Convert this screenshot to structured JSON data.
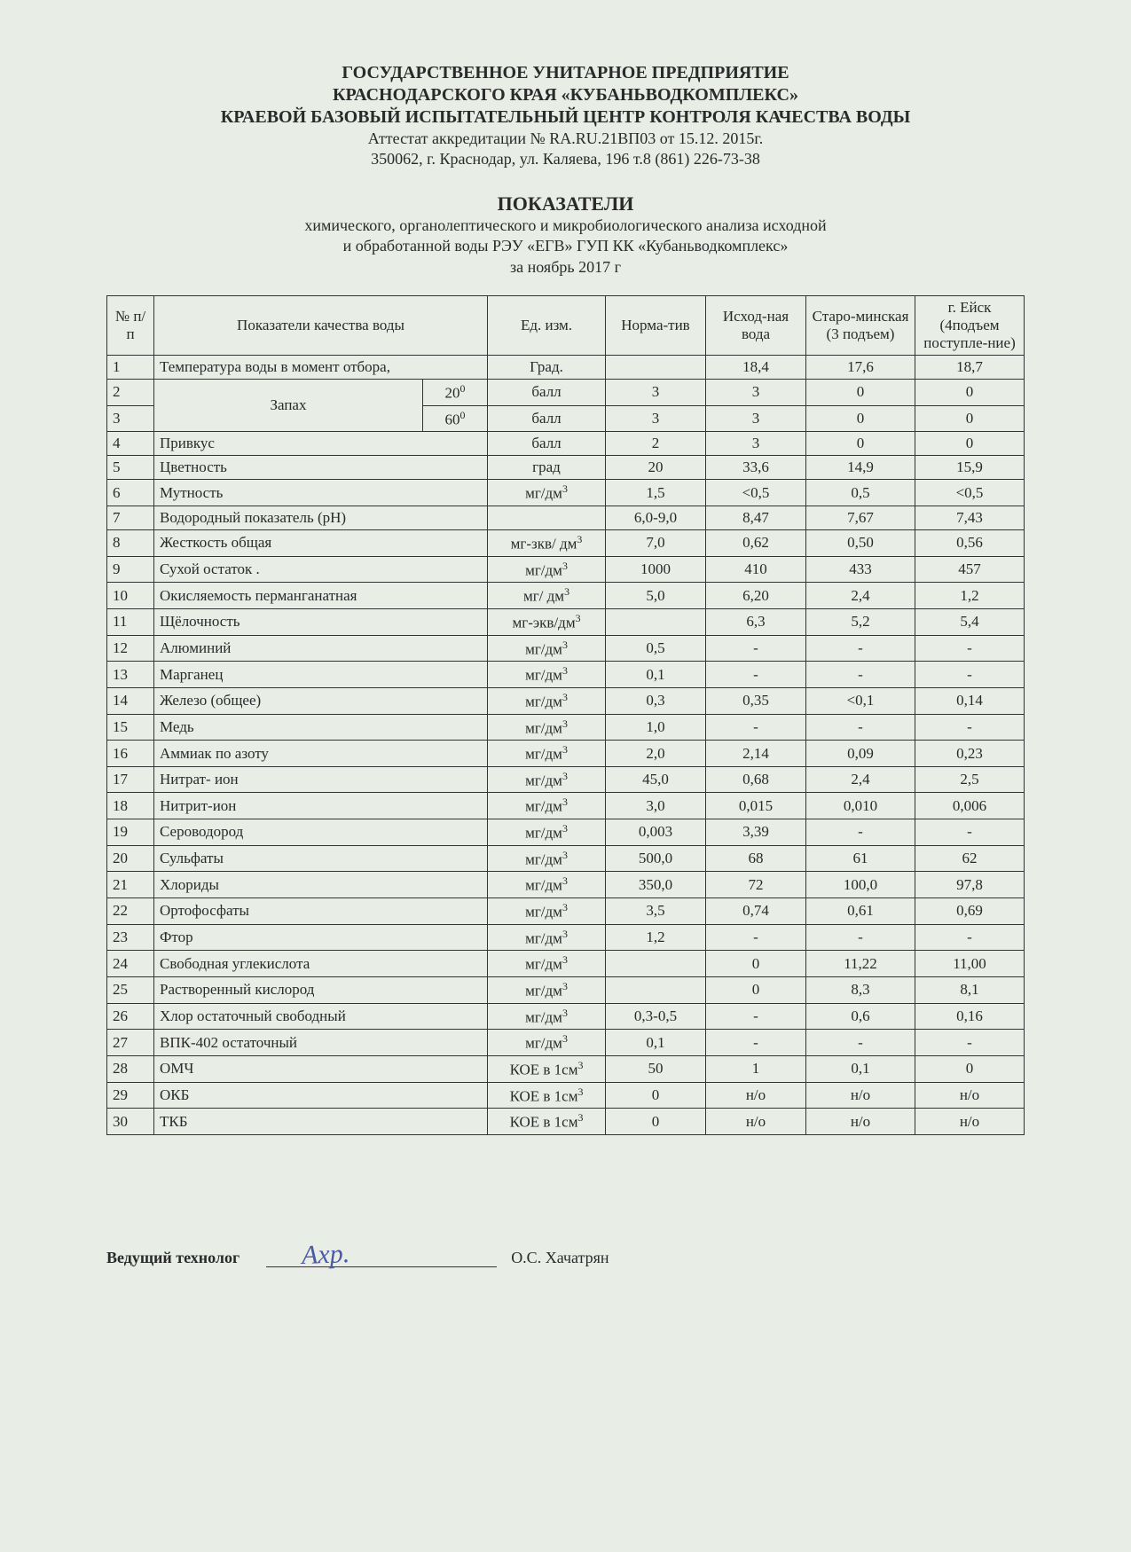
{
  "header": {
    "org1": "ГОСУДАРСТВЕННОЕ УНИТАРНОЕ ПРЕДПРИЯТИЕ",
    "org2": "КРАСНОДАРСКОГО КРАЯ «КУБАНЬВОДКОМПЛЕКС»",
    "org3": "КРАЕВОЙ БАЗОВЫЙ ИСПЫТАТЕЛЬНЫЙ ЦЕНТР КОНТРОЛЯ КАЧЕСТВА ВОДЫ",
    "attest": "Аттестат аккредитации   №  RA.RU.21ВП03 от 15.12. 2015г.",
    "addr": "350062, г. Краснодар, ул. Каляева, 196    т.8 (861) 226-73-38"
  },
  "title": {
    "t1": "ПОКАЗАТЕЛИ",
    "t2": "химического, органолептического и микробиологического анализа исходной",
    "t3": "и обработанной воды  РЭУ «ЕГВ» ГУП КК «Кубаньводкомплекс»",
    "t4": "за ноябрь 2017 г"
  },
  "table": {
    "headers": {
      "num": "№ п/п",
      "param": "Показатели качества воды",
      "unit": "Ед. изм.",
      "norm": "Норма-тив",
      "c1": "Исход-ная вода",
      "c2": "Старо-минская (3 подъем)",
      "c3": "г. Ейск (4подъем поступле-ние)"
    },
    "zapah_label": "Запах",
    "zapah_t1": "20",
    "zapah_t2": "60",
    "rows": [
      {
        "n": "1",
        "p": "Температура воды в момент отбора,",
        "u": "Град.",
        "norm": "",
        "v1": "18,4",
        "v2": "17,6",
        "v3": "18,7"
      },
      {
        "n": "2",
        "p": "",
        "u": "балл",
        "norm": "3",
        "v1": "3",
        "v2": "0",
        "v3": "0"
      },
      {
        "n": "3",
        "p": "",
        "u": "балл",
        "norm": "3",
        "v1": "3",
        "v2": "0",
        "v3": "0"
      },
      {
        "n": "4",
        "p": "Привкус",
        "u": "балл",
        "norm": "2",
        "v1": "3",
        "v2": "0",
        "v3": "0"
      },
      {
        "n": "5",
        "p": "Цветность",
        "u": "град",
        "norm": "20",
        "v1": "33,6",
        "v2": "14,9",
        "v3": "15,9"
      },
      {
        "n": "6",
        "p": "Мутность",
        "u": "мг/дм",
        "norm": "1,5",
        "v1": "<0,5",
        "v2": "0,5",
        "v3": "<0,5"
      },
      {
        "n": "7",
        "p": "Водородный показатель (pH)",
        "u": "",
        "norm": "6,0-9,0",
        "v1": "8,47",
        "v2": "7,67",
        "v3": "7,43"
      },
      {
        "n": "8",
        "p": "Жесткость общая",
        "u": "мг-зкв/ дм",
        "norm": "7,0",
        "v1": "0,62",
        "v2": "0,50",
        "v3": "0,56"
      },
      {
        "n": "9",
        "p": "Сухой остаток .",
        "u": "мг/дм",
        "norm": "1000",
        "v1": "410",
        "v2": "433",
        "v3": "457"
      },
      {
        "n": "10",
        "p": "Окисляемость перманганатная",
        "u": "мг/ дм",
        "norm": "5,0",
        "v1": "6,20",
        "v2": "2,4",
        "v3": "1,2"
      },
      {
        "n": "11",
        "p": "Щёлочность",
        "u": "мг-экв/дм",
        "norm": "",
        "v1": "6,3",
        "v2": "5,2",
        "v3": "5,4"
      },
      {
        "n": "12",
        "p": "Алюминий",
        "u": "мг/дм",
        "norm": "0,5",
        "v1": "-",
        "v2": "-",
        "v3": "-"
      },
      {
        "n": "13",
        "p": "Марганец",
        "u": "мг/дм",
        "norm": "0,1",
        "v1": "-",
        "v2": "-",
        "v3": "-"
      },
      {
        "n": "14",
        "p": "Железо (общее)",
        "u": "мг/дм",
        "norm": "0,3",
        "v1": "0,35",
        "v2": "<0,1",
        "v3": "0,14"
      },
      {
        "n": "15",
        "p": "Медь",
        "u": "мг/дм",
        "norm": "1,0",
        "v1": "-",
        "v2": "-",
        "v3": "-"
      },
      {
        "n": "16",
        "p": "Аммиак по азоту",
        "u": "мг/дм",
        "norm": "2,0",
        "v1": "2,14",
        "v2": "0,09",
        "v3": "0,23"
      },
      {
        "n": "17",
        "p": "Нитрат- ион",
        "u": "мг/дм",
        "norm": "45,0",
        "v1": "0,68",
        "v2": "2,4",
        "v3": "2,5"
      },
      {
        "n": "18",
        "p": "Нитрит-ион",
        "u": "мг/дм",
        "norm": "3,0",
        "v1": "0,015",
        "v2": "0,010",
        "v3": "0,006"
      },
      {
        "n": "19",
        "p": "Сероводород",
        "u": "мг/дм",
        "norm": "0,003",
        "v1": "3,39",
        "v2": "-",
        "v3": "-"
      },
      {
        "n": "20",
        "p": "Сульфаты",
        "u": "мг/дм",
        "norm": "500,0",
        "v1": "68",
        "v2": "61",
        "v3": "62"
      },
      {
        "n": "21",
        "p": "Хлориды",
        "u": "мг/дм",
        "norm": "350,0",
        "v1": "72",
        "v2": "100,0",
        "v3": "97,8"
      },
      {
        "n": "22",
        "p": "Ортофосфаты",
        "u": "мг/дм",
        "norm": "3,5",
        "v1": "0,74",
        "v2": "0,61",
        "v3": "0,69"
      },
      {
        "n": "23",
        "p": "Фтор",
        "u": "мг/дм",
        "norm": "1,2",
        "v1": "-",
        "v2": "-",
        "v3": "-"
      },
      {
        "n": "24",
        "p": "Свободная углекислота",
        "u": "мг/дм",
        "norm": "",
        "v1": "0",
        "v2": "11,22",
        "v3": "11,00"
      },
      {
        "n": "25",
        "p": "Растворенный кислород",
        "u": "мг/дм",
        "norm": "",
        "v1": "0",
        "v2": "8,3",
        "v3": "8,1"
      },
      {
        "n": "26",
        "p": "Хлор остаточный свободный",
        "u": "мг/дм",
        "norm": "0,3-0,5",
        "v1": "-",
        "v2": "0,6",
        "v3": "0,16"
      },
      {
        "n": "27",
        "p": "ВПК-402 остаточный",
        "u": "мг/дм",
        "norm": "0,1",
        "v1": "-",
        "v2": "-",
        "v3": "-"
      },
      {
        "n": "28",
        "p": "ОМЧ",
        "u": "КОЕ в 1см",
        "norm": "50",
        "v1": "1",
        "v2": "0,1",
        "v3": "0"
      },
      {
        "n": "29",
        "p": "ОКБ",
        "u": "КОЕ в 1см",
        "norm": "0",
        "v1": "н/о",
        "v2": "н/о",
        "v3": "н/о"
      },
      {
        "n": "30",
        "p": "ТКБ",
        "u": "КОЕ в 1см",
        "norm": "0",
        "v1": "н/о",
        "v2": "н/о",
        "v3": "н/о"
      }
    ]
  },
  "sign": {
    "role": "Ведущий технолог",
    "name": "О.С. Хачатрян"
  },
  "style": {
    "unit_sup_rows": [
      6,
      8,
      9,
      10,
      11,
      12,
      13,
      14,
      15,
      16,
      17,
      18,
      19,
      20,
      21,
      22,
      23,
      24,
      25,
      26,
      27,
      28,
      29,
      30
    ]
  }
}
